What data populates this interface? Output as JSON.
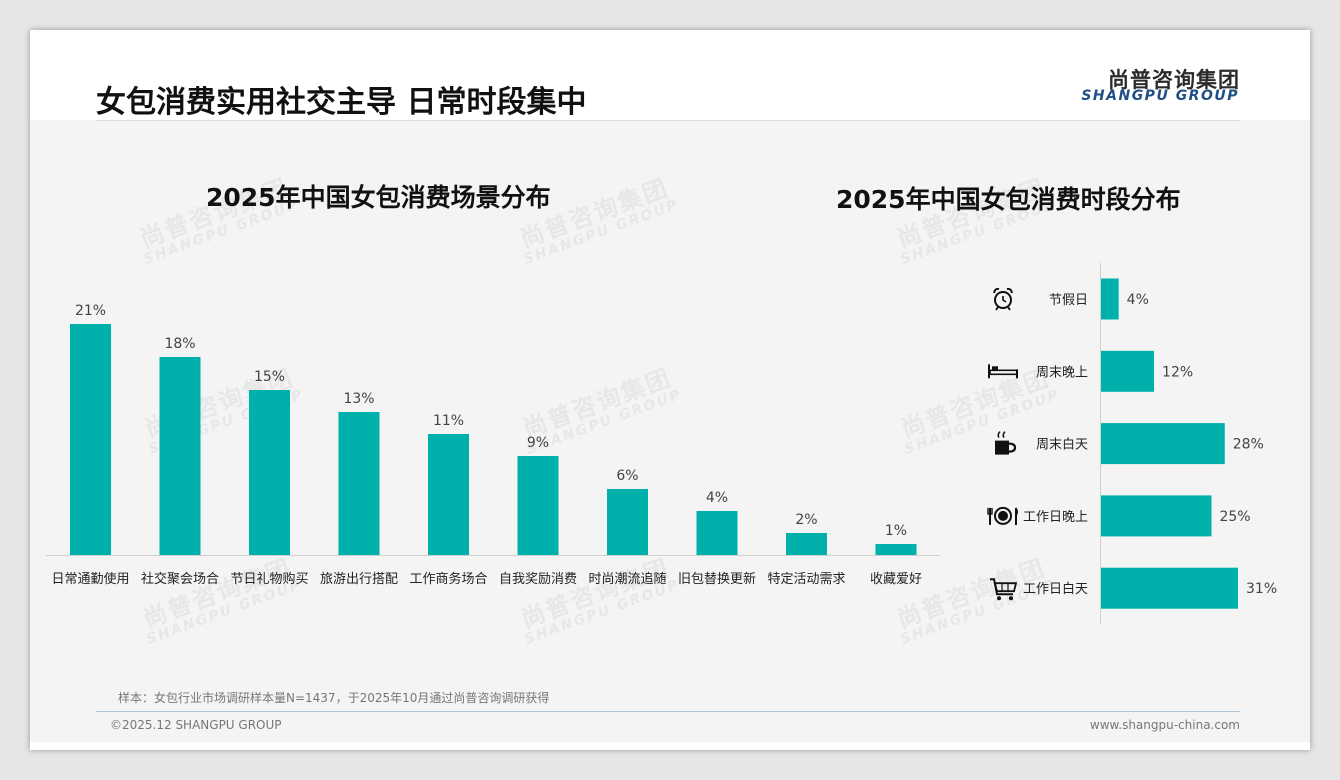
{
  "header": {
    "title": "女包消费实用社交主导 日常时段集中",
    "logo_cn": "尚普咨询集团",
    "logo_en": "SHANGPU GROUP"
  },
  "watermark": {
    "cn": "尚普咨询集团",
    "en": "SHANGPU GROUP"
  },
  "chart_data": [
    {
      "type": "bar",
      "title": "2025年中国女包消费场景分布",
      "categories": [
        "日常通勤使用",
        "社交聚会场合",
        "节日礼物购买",
        "旅游出行搭配",
        "工作商务场合",
        "自我奖励消费",
        "时尚潮流追随",
        "旧包替换更新",
        "特定活动需求",
        "收藏爱好"
      ],
      "values": [
        21,
        18,
        15,
        13,
        11,
        9,
        6,
        4,
        2,
        1
      ],
      "value_labels": [
        "21%",
        "18%",
        "15%",
        "13%",
        "11%",
        "9%",
        "6%",
        "4%",
        "2%",
        "1%"
      ],
      "unit": "%",
      "ylim": [
        0,
        21
      ],
      "grid": false,
      "color": "#00b0aa"
    },
    {
      "type": "bar",
      "orientation": "horizontal",
      "title": "2025年中国女包消费时段分布",
      "categories": [
        "节假日",
        "周末晚上",
        "周末白天",
        "工作日晚上",
        "工作日白天"
      ],
      "icons": [
        "alarm-clock-icon",
        "bed-icon",
        "coffee-cup-icon",
        "plate-cutlery-icon",
        "shopping-cart-icon"
      ],
      "values": [
        4,
        12,
        28,
        25,
        31
      ],
      "value_labels": [
        "4%",
        "12%",
        "28%",
        "25%",
        "31%"
      ],
      "unit": "%",
      "xlim": [
        0,
        31
      ],
      "grid": false,
      "color": "#00b0aa"
    }
  ],
  "footer": {
    "note": "样本：女包行业市场调研样本量N=1437，于2025年10月通过尚普咨询调研获得",
    "copyright": "©2025.12 SHANGPU GROUP",
    "website": "www.shangpu-china.com"
  }
}
